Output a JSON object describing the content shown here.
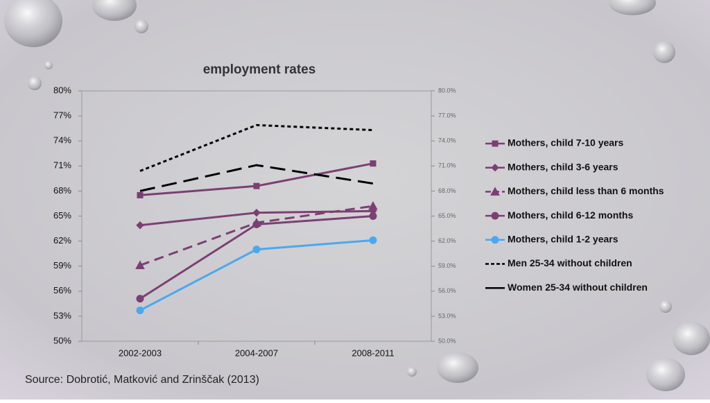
{
  "chart_data": {
    "type": "line",
    "title": "employment rates",
    "source": "Source: Dobrotić, Matković and Zrinščak (2013)",
    "categories": [
      "2002-2003",
      "2004-2007",
      "2008-2011"
    ],
    "ylim": [
      50,
      80
    ],
    "yticks": [
      {
        "value": 50,
        "label": "50%"
      },
      {
        "value": 53,
        "label": "53%"
      },
      {
        "value": 56,
        "label": "56%"
      },
      {
        "value": 59,
        "label": "59%"
      },
      {
        "value": 62,
        "label": "62%"
      },
      {
        "value": 65,
        "label": "65%"
      },
      {
        "value": 68,
        "label": "68%"
      },
      {
        "value": 71,
        "label": "71%"
      },
      {
        "value": 74,
        "label": "74%"
      },
      {
        "value": 77,
        "label": "77%"
      },
      {
        "value": 80,
        "label": "80%"
      }
    ],
    "y2lim": [
      50,
      80
    ],
    "y2ticks": [
      {
        "value": 50,
        "label": "50.0%"
      },
      {
        "value": 53,
        "label": "53.0%"
      },
      {
        "value": 56,
        "label": "56.0%"
      },
      {
        "value": 59,
        "label": "59.0%"
      },
      {
        "value": 62,
        "label": "62.0%"
      },
      {
        "value": 65,
        "label": "65.0%"
      },
      {
        "value": 68,
        "label": "68.0%"
      },
      {
        "value": 71,
        "label": "71.0%"
      },
      {
        "value": 74,
        "label": "74.0%"
      },
      {
        "value": 77,
        "label": "77.0%"
      },
      {
        "value": 80,
        "label": "80.0%"
      }
    ],
    "legend": "right",
    "series": [
      {
        "name": "Mothers, child 7-10 years",
        "color": "#7b3f73",
        "marker": "square",
        "dash": "solid",
        "values": [
          67.5,
          68.6,
          71.3
        ]
      },
      {
        "name": "Mothers, child 3-6 years",
        "color": "#7b3f73",
        "marker": "diamond",
        "dash": "solid",
        "values": [
          63.9,
          65.4,
          65.6
        ]
      },
      {
        "name": "Mothers, child less than 6 months",
        "color": "#7b3f73",
        "marker": "triangle",
        "dash": "dashed",
        "values": [
          59.1,
          64.2,
          66.2
        ]
      },
      {
        "name": "Mothers, child 6-12 months",
        "color": "#7b3f73",
        "marker": "circle",
        "dash": "solid",
        "values": [
          55.1,
          64.0,
          65.0
        ]
      },
      {
        "name": "Mothers, child 1-2 years",
        "color": "#4aa8f0",
        "marker": "circle",
        "dash": "solid",
        "values": [
          53.7,
          61.0,
          62.1
        ]
      },
      {
        "name": "Men 25-34 without children",
        "color": "#000000",
        "marker": "none",
        "dash": "dotted",
        "values": [
          70.4,
          75.9,
          75.3
        ]
      },
      {
        "name": "Women 25-34 without children",
        "color": "#000000",
        "marker": "none",
        "dash": "longdash",
        "values": [
          68.0,
          71.1,
          68.9
        ]
      }
    ]
  }
}
